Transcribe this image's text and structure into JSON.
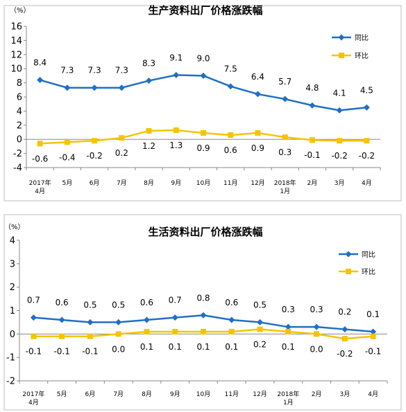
{
  "chart_data": [
    {
      "type": "line",
      "title": "生产资料出厂价格涨跌幅",
      "unit": "（%）",
      "categories": [
        "2017年\n4月",
        "5月",
        "6月",
        "7月",
        "8月",
        "9月",
        "10月",
        "11月",
        "12月",
        "2018年\n1月",
        "2月",
        "3月",
        "4月"
      ],
      "ylim": [
        -4,
        16
      ],
      "yticks": [
        -4,
        -2,
        0,
        2,
        4,
        6,
        8,
        10,
        12,
        14,
        16
      ],
      "legend_position": "top-right",
      "series": [
        {
          "name": "同比",
          "color": "#1f6fc5",
          "marker": "diamond",
          "values": [
            8.4,
            7.3,
            7.3,
            7.3,
            8.3,
            9.1,
            9.0,
            7.5,
            6.4,
            5.7,
            4.8,
            4.1,
            4.5
          ],
          "labels": [
            "8.4",
            "7.3",
            "7.3",
            "7.3",
            "8.3",
            "9.1",
            "9.0",
            "7.5",
            "6.4",
            "5.7",
            "4.8",
            "4.1",
            "4.5"
          ]
        },
        {
          "name": "环比",
          "color": "#f5c400",
          "marker": "square",
          "values": [
            -0.6,
            -0.4,
            -0.2,
            0.2,
            1.2,
            1.3,
            0.9,
            0.6,
            0.9,
            0.3,
            -0.1,
            -0.2,
            -0.2
          ],
          "labels": [
            "-0.6",
            "-0.4",
            "-0.2",
            "0.2",
            "1.2",
            "1.3",
            "0.9",
            "0.6",
            "0.9",
            "0.3",
            "-0.1",
            "-0.2",
            "-0.2"
          ]
        }
      ]
    },
    {
      "type": "line",
      "title": "生活资料出厂价格涨跌幅",
      "unit": "（%）",
      "categories": [
        "2017年\n4月",
        "5月",
        "6月",
        "7月",
        "8月",
        "9月",
        "10月",
        "11月",
        "12月",
        "2018年\n1月",
        "2月",
        "3月",
        "4月"
      ],
      "ylim": [
        -2,
        4
      ],
      "yticks": [
        -2,
        -1,
        0,
        1,
        2,
        3,
        4
      ],
      "legend_position": "top-right",
      "series": [
        {
          "name": "同比",
          "color": "#1f6fc5",
          "marker": "diamond",
          "values": [
            0.7,
            0.6,
            0.5,
            0.5,
            0.6,
            0.7,
            0.8,
            0.6,
            0.5,
            0.3,
            0.3,
            0.2,
            0.1
          ],
          "labels": [
            "0.7",
            "0.6",
            "0.5",
            "0.5",
            "0.6",
            "0.7",
            "0.8",
            "0.6",
            "0.5",
            "0.3",
            "0.3",
            "0.2",
            "0.1"
          ]
        },
        {
          "name": "环比",
          "color": "#f5c400",
          "marker": "square",
          "values": [
            -0.1,
            -0.1,
            -0.1,
            0.0,
            0.1,
            0.1,
            0.1,
            0.1,
            0.2,
            0.1,
            0.0,
            -0.2,
            -0.1
          ],
          "labels": [
            "-0.1",
            "-0.1",
            "-0.1",
            "0.0",
            "0.1",
            "0.1",
            "0.1",
            "0.1",
            "0.2",
            "0.1",
            "0.0",
            "-0.2",
            "-0.1"
          ]
        }
      ]
    }
  ]
}
